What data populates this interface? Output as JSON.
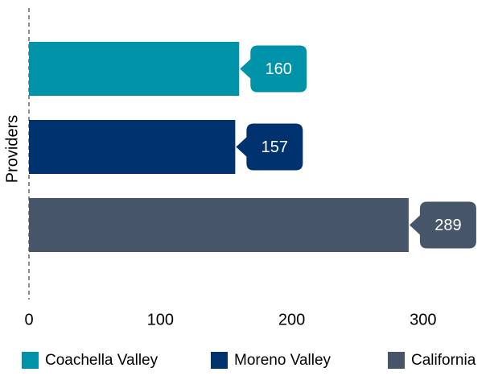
{
  "chart_data": {
    "type": "bar",
    "orientation": "horizontal",
    "categories": [
      "Providers"
    ],
    "series": [
      {
        "name": "Coachella Valley",
        "color": "#0092a8",
        "values": [
          160
        ]
      },
      {
        "name": "Moreno Valley",
        "color": "#003270",
        "values": [
          157
        ]
      },
      {
        "name": "California",
        "color": "#465568",
        "values": [
          289
        ]
      }
    ],
    "xlim": [
      0,
      350
    ],
    "xticks": [
      0,
      100,
      200,
      300
    ],
    "legend": "bottom"
  }
}
